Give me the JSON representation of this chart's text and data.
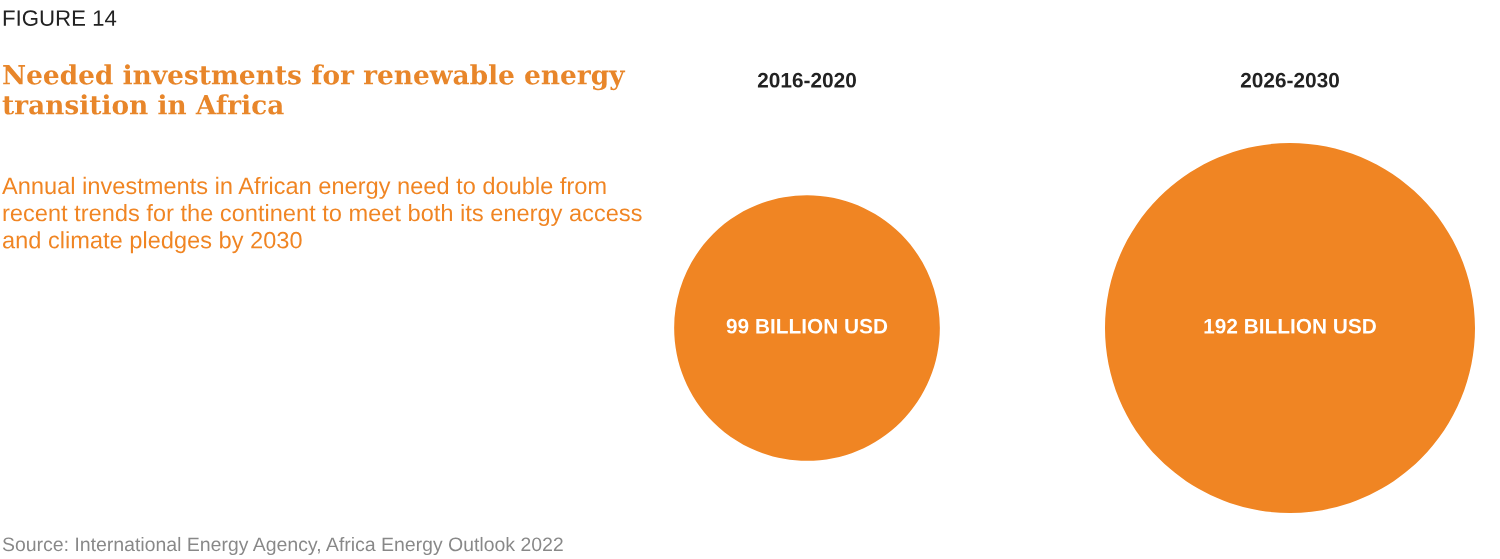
{
  "chart_data": {
    "type": "other",
    "title": "Needed investments for renewable energy transition in Africa",
    "subtitle": "Annual investments in African energy need to double from recent trends for the continent to meet both its energy access and climate pledges by 2030",
    "annotations": [
      "FIGURE 14",
      "Source: International Energy Agency, Africa Energy Outlook 2022"
    ],
    "categories": [
      "2016-2020",
      "2026-2030"
    ],
    "values": [
      99,
      192
    ],
    "value_labels": [
      "99 BILLION USD",
      "192 BILLION USD"
    ],
    "color": "#f08523"
  }
}
